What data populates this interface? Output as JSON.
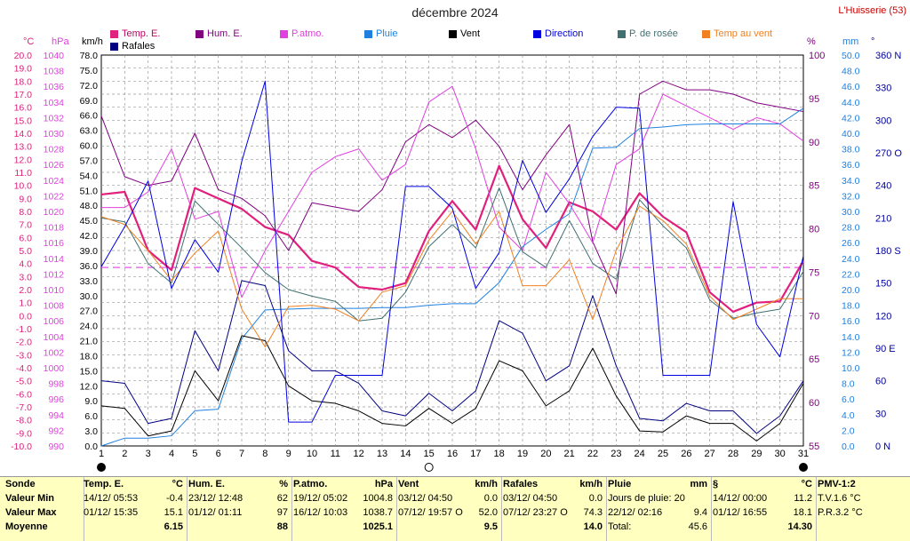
{
  "header": {
    "title": "décembre 2024",
    "station": "L'Huisserie (53)"
  },
  "legend": [
    {
      "label": "Temp. E.",
      "color": "#e0207c"
    },
    {
      "label": "Hum. E.",
      "color": "#800080"
    },
    {
      "label": "P.atmo.",
      "color": "#e040e0"
    },
    {
      "label": "Pluie",
      "color": "#2080e0"
    },
    {
      "label": "Vent",
      "color": "#000000"
    },
    {
      "label": "Direction",
      "color": "#0000e0"
    },
    {
      "label": "P. de rosée",
      "color": "#407070"
    },
    {
      "label": "Temp au vent",
      "color": "#f08020"
    },
    {
      "label": "Rafales",
      "color": "#000080"
    }
  ],
  "axis_units": {
    "temp": "°C",
    "pres": "hPa",
    "wind": "km/h",
    "hum": "%",
    "rain": "mm",
    "dir": "°"
  },
  "chart_data": {
    "type": "line",
    "x": [
      1,
      2,
      3,
      4,
      5,
      6,
      7,
      8,
      9,
      10,
      11,
      12,
      13,
      14,
      15,
      16,
      17,
      18,
      19,
      20,
      21,
      22,
      23,
      24,
      25,
      26,
      27,
      28,
      29,
      30,
      31
    ],
    "xlim": [
      1,
      31
    ],
    "axes": {
      "temp": {
        "range": [
          -10,
          20
        ],
        "step": 1
      },
      "pres": {
        "range": [
          990,
          1040
        ],
        "step": 2
      },
      "wind": {
        "range": [
          0,
          78
        ],
        "step": 3
      },
      "hum": {
        "range": [
          55,
          100
        ],
        "step": 5
      },
      "rain": {
        "range": [
          0,
          50
        ],
        "step": 2
      },
      "dir": {
        "range": [
          0,
          360
        ],
        "ticks": [
          0,
          30,
          60,
          90,
          120,
          150,
          180,
          210,
          240,
          270,
          300,
          330,
          360
        ],
        "labels": {
          "0": "0 N",
          "90": "90 E",
          "180": "180 S",
          "270": "270 O",
          "360": "360 N"
        }
      }
    },
    "grid": true,
    "series": [
      {
        "name": "Temp. E.",
        "axis": "temp",
        "color": "#e0207c",
        "width": 2.2,
        "values": [
          9.3,
          9.5,
          5.0,
          3.5,
          9.8,
          9.0,
          8.2,
          6.8,
          6.2,
          4.2,
          3.7,
          2.2,
          2.0,
          2.5,
          6.5,
          8.8,
          6.6,
          11.5,
          7.4,
          5.2,
          8.7,
          8.0,
          6.6,
          9.4,
          7.6,
          6.4,
          1.8,
          0.3,
          1.0,
          1.1,
          4.2
        ]
      },
      {
        "name": "Hum. E.",
        "axis": "hum",
        "color": "#800080",
        "width": 1,
        "values": [
          93,
          86,
          85,
          85.5,
          91,
          84.5,
          83.5,
          81.5,
          77.5,
          83,
          82.5,
          82,
          84.5,
          90,
          92,
          90.5,
          92.5,
          89.5,
          84.5,
          88.5,
          92,
          78.5,
          72.5,
          95.5,
          97,
          96,
          96,
          95.5,
          94.5,
          94,
          93.5
        ]
      },
      {
        "name": "P.atmo.",
        "axis": "pres",
        "color": "#e040e0",
        "width": 1,
        "values": [
          1020.5,
          1020.5,
          1022.5,
          1028,
          1019,
          1020,
          1009,
          1015,
          1020,
          1025,
          1027,
          1028,
          1024,
          1026,
          1034,
          1036,
          1028,
          1018,
          1015,
          1025,
          1021,
          1016,
          1026,
          1028,
          1035,
          1033.5,
          1032,
          1030.5,
          1032,
          1031.2,
          1029
        ]
      },
      {
        "name": "Pluie",
        "axis": "rain",
        "color": "#2080e0",
        "width": 1,
        "values": [
          0,
          1,
          1,
          1.3,
          4.5,
          4.7,
          13.7,
          17.4,
          17.5,
          17.6,
          17.6,
          17.6,
          17.7,
          17.7,
          18,
          18.2,
          18.2,
          20.9,
          25.5,
          27.7,
          29.7,
          38.1,
          38.2,
          40.6,
          40.8,
          41.1,
          41.2,
          41.2,
          41.2,
          41.2,
          43.2
        ]
      },
      {
        "name": "Vent",
        "axis": "wind",
        "color": "#000000",
        "width": 1,
        "values": [
          8,
          7.5,
          2,
          3,
          15,
          9,
          22,
          21,
          12,
          9,
          8.5,
          7,
          4.5,
          4,
          7.5,
          4.5,
          7.5,
          17,
          15,
          8,
          11,
          19.5,
          10,
          3,
          2.8,
          6,
          4.5,
          4.5,
          1,
          4.5,
          12.5
        ]
      },
      {
        "name": "Rafales",
        "axis": "wind",
        "color": "#000080",
        "width": 1,
        "values": [
          13,
          12.5,
          4.5,
          5.5,
          23,
          15,
          33,
          32,
          19,
          15,
          15,
          12.5,
          7,
          6,
          10.5,
          7,
          11,
          25,
          22.5,
          13,
          16,
          30,
          16,
          5.5,
          5,
          8.5,
          7,
          7,
          2.5,
          6,
          13
        ]
      },
      {
        "name": "P. de rosée",
        "axis": "temp",
        "color": "#407070",
        "width": 1,
        "values": [
          7.5,
          7.2,
          4,
          2.5,
          8.8,
          7,
          5.2,
          3.3,
          2,
          1.5,
          1.1,
          -0.4,
          -0.2,
          1.8,
          5.3,
          7,
          5.2,
          9.8,
          4.9,
          3.7,
          7.3,
          4,
          2.8,
          8.9,
          6.9,
          5.2,
          1.2,
          -0.2,
          0.2,
          0.5,
          3.4
        ]
      },
      {
        "name": "Temp au vent",
        "axis": "temp",
        "color": "#f08020",
        "width": 1,
        "values": [
          7.6,
          7,
          5,
          2.7,
          4.8,
          6.5,
          0.5,
          -2.4,
          0.7,
          0.8,
          0.5,
          -0.4,
          1.8,
          2.3,
          5.8,
          8,
          5.5,
          8,
          2.3,
          2.3,
          4.3,
          -0.3,
          5,
          8.4,
          7.3,
          5.5,
          1.5,
          -0.3,
          0.5,
          1.3,
          1.3
        ]
      },
      {
        "name": "Direction",
        "axis": "dir",
        "color": "#0000e0",
        "width": 1,
        "values": [
          165,
          202,
          244,
          145,
          190,
          160,
          262,
          336,
          22,
          22,
          65,
          65,
          65,
          239,
          239,
          219,
          145,
          178,
          263,
          215,
          246,
          285,
          312,
          311,
          65,
          65,
          65,
          225,
          112,
          82,
          175
        ]
      }
    ],
    "reference_line": {
      "axis": "temp",
      "value": 3.7,
      "color": "#e040e0"
    },
    "moon_markers": [
      {
        "day": 1,
        "phase": "new"
      },
      {
        "day": 15,
        "phase": "full"
      },
      {
        "day": 31,
        "phase": "new"
      }
    ]
  },
  "summary": {
    "sonde": {
      "title": "Sonde",
      "rows": [
        "Valeur Min",
        "Valeur Max",
        "Moyenne"
      ]
    },
    "temp": {
      "title": "Temp. E.",
      "unit": "°C",
      "min_date": "14/12/  05:53",
      "min_val": "-0.4",
      "max_date": "01/12/  15:35",
      "max_val": "15.1",
      "avg": "6.15"
    },
    "hum": {
      "title": "Hum. E.",
      "unit": "%",
      "min_date": "23/12/  12:48",
      "min_val": "62",
      "max_date": "01/12/  01:11",
      "max_val": "97",
      "avg": "88"
    },
    "pres": {
      "title": "P.atmo.",
      "unit": "hPa",
      "min_date": "19/12/  05:02",
      "min_val": "1004.8",
      "max_date": "16/12/  10:03",
      "max_val": "1038.7",
      "avg": "1025.1"
    },
    "vent": {
      "title": "Vent",
      "unit": "km/h",
      "min_date": "03/12/  04:50",
      "min_val": "0.0",
      "max_date": "07/12/  19:57  O",
      "max_val": "52.0",
      "avg": "9.5"
    },
    "rafales": {
      "title": "Rafales",
      "unit": "km/h",
      "min_date": "03/12/  04:50",
      "min_val": "0.0",
      "max_date": "07/12/  23:27  O",
      "max_val": "74.3",
      "avg": "14.0"
    },
    "pluie": {
      "title": "Pluie",
      "unit": "mm",
      "row1": "Jours de pluie: 20",
      "row2_date": "22/12/  02:16",
      "row2_val": "9.4",
      "row3_label": "Total:",
      "row3_val": "45.6"
    },
    "sec": {
      "title": "§",
      "unit": "°C",
      "min_date": "14/12/  00:00",
      "min_val": "11.2",
      "max_date": "01/12/  16:55",
      "max_val": "18.1",
      "avg": "14.30"
    },
    "pmv": {
      "title": "PMV-1:2",
      "row1": "T.V.1.6 °C",
      "row2": "P.R.3.2 °C"
    }
  }
}
